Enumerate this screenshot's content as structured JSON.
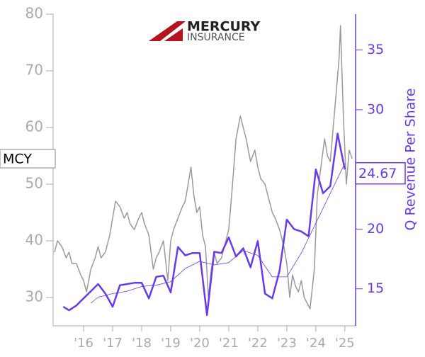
{
  "chart_data": {
    "type": "line",
    "logo": {
      "line1": "MERCURY",
      "line2": "INSURANCE"
    },
    "ticker": "MCY",
    "y2_label": "Q Revenue Per Share",
    "current_value": 24.67,
    "xlim": [
      2014.95,
      2025.37
    ],
    "xticks": [
      {
        "value": 2016,
        "label": "'16"
      },
      {
        "value": 2017,
        "label": "'17"
      },
      {
        "value": 2018,
        "label": "'18"
      },
      {
        "value": 2019,
        "label": "'19"
      },
      {
        "value": 2020,
        "label": "'20"
      },
      {
        "value": 2021,
        "label": "'21"
      },
      {
        "value": 2022,
        "label": "'22"
      },
      {
        "value": 2023,
        "label": "'23"
      },
      {
        "value": 2024,
        "label": "'24"
      },
      {
        "value": 2025,
        "label": "'25"
      }
    ],
    "ylim": [
      25,
      80
    ],
    "yticks": [
      30,
      40,
      50,
      60,
      70,
      80
    ],
    "y2lim": [
      11.9,
      38
    ],
    "y2ticks": [
      15,
      20,
      30,
      35
    ],
    "series": [
      {
        "color": "#9a9a9a",
        "width": 1.5,
        "x": [
          2015.0,
          2015.1,
          2015.25,
          2015.4,
          2015.5,
          2015.6,
          2015.75,
          2015.9,
          2016.0,
          2016.1,
          2016.25,
          2016.4,
          2016.5,
          2016.6,
          2016.75,
          2016.9,
          2017.0,
          2017.1,
          2017.25,
          2017.4,
          2017.5,
          2017.6,
          2017.75,
          2017.9,
          2018.0,
          2018.1,
          2018.25,
          2018.4,
          2018.5,
          2018.6,
          2018.75,
          2018.9,
          2019.0,
          2019.1,
          2019.25,
          2019.4,
          2019.5,
          2019.6,
          2019.7,
          2019.8,
          2019.9,
          2020.0,
          2020.1,
          2020.2,
          2020.3,
          2020.4,
          2020.5,
          2020.6,
          2020.75,
          2020.9,
          2021.0,
          2021.1,
          2021.25,
          2021.4,
          2021.5,
          2021.6,
          2021.75,
          2021.9,
          2022.0,
          2022.1,
          2022.25,
          2022.4,
          2022.5,
          2022.6,
          2022.75,
          2022.9,
          2023.0,
          2023.1,
          2023.2,
          2023.3,
          2023.4,
          2023.5,
          2023.6,
          2023.7,
          2023.8,
          2023.95,
          2024.05,
          2024.15,
          2024.3,
          2024.4,
          2024.5,
          2024.6,
          2024.7,
          2024.8,
          2024.85,
          2024.9,
          2024.95,
          2025.05,
          2025.15,
          2025.25
        ],
        "values": [
          38,
          40,
          39,
          37,
          38,
          36,
          36,
          34,
          33,
          31,
          35,
          37,
          39,
          37,
          38,
          41,
          44,
          47,
          46,
          44,
          45,
          43,
          42,
          44,
          45,
          43,
          41,
          35,
          37,
          38,
          40,
          33,
          40,
          42,
          44,
          46,
          47,
          50,
          53,
          48,
          45,
          46,
          41,
          39,
          30,
          35,
          38,
          36,
          37,
          40,
          42,
          48,
          58,
          62,
          60,
          58,
          54,
          56,
          53,
          51,
          50,
          47,
          45,
          44,
          42,
          39,
          36,
          30,
          34,
          32,
          31,
          33,
          30,
          29,
          28,
          35,
          48,
          52,
          58,
          55,
          54,
          60,
          66,
          72,
          78,
          70,
          62,
          50,
          56,
          54.5
        ]
      },
      {
        "color": "#6a3ae8",
        "width": 2.5,
        "axis": "y2",
        "x": [
          2015.3,
          2015.5,
          2015.75,
          2016.0,
          2016.25,
          2016.5,
          2016.75,
          2017.0,
          2017.25,
          2017.5,
          2017.75,
          2018.0,
          2018.25,
          2018.5,
          2018.75,
          2019.0,
          2019.25,
          2019.5,
          2019.75,
          2020.0,
          2020.25,
          2020.5,
          2020.75,
          2021.0,
          2021.25,
          2021.5,
          2021.75,
          2022.0,
          2022.25,
          2022.5,
          2022.75,
          2023.0,
          2023.25,
          2023.5,
          2023.75,
          2024.0,
          2024.25,
          2024.5,
          2024.75,
          2025.0
        ],
        "values": [
          13.5,
          13.2,
          13.6,
          14.2,
          14.8,
          15.4,
          14.6,
          13.5,
          15.3,
          15.4,
          15.5,
          15.5,
          14.2,
          16.0,
          16.1,
          14.7,
          18.5,
          17.8,
          18.0,
          18.0,
          12.8,
          18.1,
          18.0,
          19.3,
          17.7,
          18.4,
          16.8,
          19.0,
          14.6,
          14.2,
          16.5,
          20.8,
          20.0,
          19.8,
          19.4,
          25.0,
          23.0,
          23.6,
          28.0,
          25.0
        ]
      },
      {
        "color": "#6a3ae8",
        "width": 0.8,
        "axis": "y2",
        "x": [
          2016.25,
          2016.5,
          2017.0,
          2017.5,
          2018.0,
          2018.5,
          2019.0,
          2019.5,
          2020.0,
          2020.5,
          2021.0,
          2021.5,
          2022.0,
          2022.5,
          2023.0,
          2023.5,
          2024.0,
          2024.5,
          2025.0
        ],
        "values": [
          13.8,
          14.3,
          14.6,
          14.8,
          15.2,
          15.3,
          15.6,
          16.7,
          17.3,
          17.0,
          17.2,
          18.2,
          17.8,
          16.0,
          16.0,
          18.0,
          20.5,
          23.0,
          25.5
        ]
      }
    ]
  }
}
